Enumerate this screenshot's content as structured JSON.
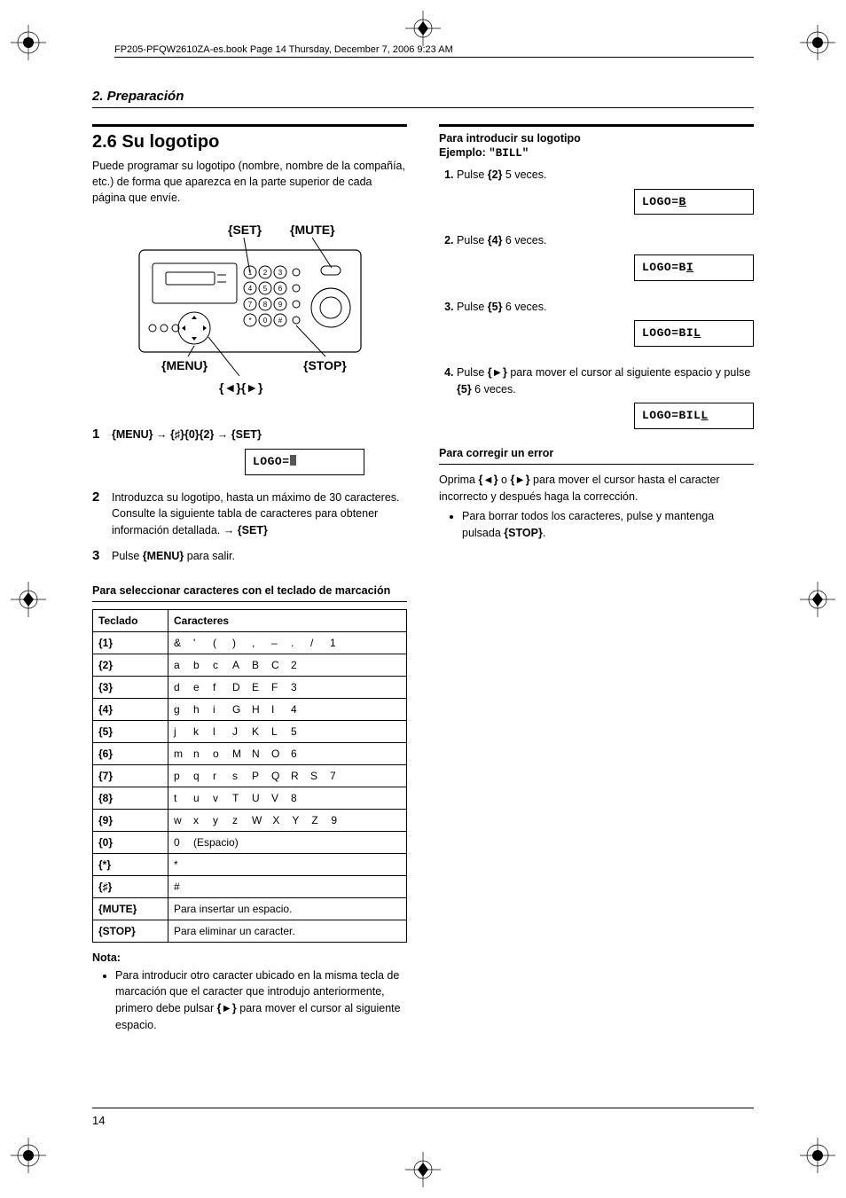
{
  "header": {
    "book_info": "FP205-PFQW2610ZA-es.book  Page 14  Thursday, December 7, 2006  9:23 AM"
  },
  "section_label": "2. Preparación",
  "title": "2.6 Su logotipo",
  "intro": "Puede programar su logotipo (nombre, nombre de la compañía, etc.) de forma que aparezca en la parte superior de cada página que envíe.",
  "device_labels": {
    "set": "{SET}",
    "mute": "{MUTE}",
    "menu": "{MENU}",
    "stop": "{STOP}",
    "arrows": "{◄}{►}"
  },
  "left_steps": [
    {
      "n": "1",
      "text_before": "",
      "sequence": "{MENU} → {♯}{0}{2} → {SET}",
      "lcd": "LOGO="
    },
    {
      "n": "2",
      "text": "Introduzca su logotipo, hasta un máximo de 30 caracteres. Consulte la siguiente tabla de caracteres para obtener información detallada. → {SET}"
    },
    {
      "n": "3",
      "text": "Pulse {MENU} para salir."
    }
  ],
  "char_table": {
    "heading": "Para seleccionar caracteres con el teclado de marcación",
    "col_keypad": "Teclado",
    "col_chars": "Caracteres",
    "rows": [
      {
        "key": "{1}",
        "chars": [
          "&",
          "'",
          "(",
          ")",
          ",",
          "–",
          ".",
          "/",
          "1"
        ]
      },
      {
        "key": "{2}",
        "chars": [
          "a",
          "b",
          "c",
          "A",
          "B",
          "C",
          "2"
        ]
      },
      {
        "key": "{3}",
        "chars": [
          "d",
          "e",
          "f",
          "D",
          "E",
          "F",
          "3"
        ]
      },
      {
        "key": "{4}",
        "chars": [
          "g",
          "h",
          "i",
          "G",
          "H",
          "I",
          "4"
        ]
      },
      {
        "key": "{5}",
        "chars": [
          "j",
          "k",
          "l",
          "J",
          "K",
          "L",
          "5"
        ]
      },
      {
        "key": "{6}",
        "chars": [
          "m",
          "n",
          "o",
          "M",
          "N",
          "O",
          "6"
        ]
      },
      {
        "key": "{7}",
        "chars": [
          "p",
          "q",
          "r",
          "s",
          "P",
          "Q",
          "R",
          "S",
          "7"
        ]
      },
      {
        "key": "{8}",
        "chars": [
          "t",
          "u",
          "v",
          "T",
          "U",
          "V",
          "8"
        ]
      },
      {
        "key": "{9}",
        "chars": [
          "w",
          "x",
          "y",
          "z",
          "W",
          "X",
          "Y",
          "Z",
          "9"
        ]
      },
      {
        "key": "{0}",
        "chars": [
          "0",
          "(Espacio)"
        ]
      },
      {
        "key": "{*}",
        "chars": [
          "*"
        ]
      },
      {
        "key": "{♯}",
        "chars": [
          "#"
        ]
      },
      {
        "key": "{MUTE}",
        "text": "Para insertar un espacio."
      },
      {
        "key": "{STOP}",
        "text": "Para eliminar un caracter."
      }
    ]
  },
  "note": {
    "label": "Nota:",
    "bullet": "Para introducir otro caracter ubicado en la misma tecla de marcación que el caracter que introdujo anteriormente, primero debe pulsar {►} para mover el cursor al siguiente espacio."
  },
  "right": {
    "heading": "Para introducir su logotipo",
    "example_label": "Ejemplo:",
    "example_value": "\"BILL\"",
    "steps": [
      {
        "n": "1.",
        "text": "Pulse {2} 5 veces.",
        "lcd_prefix": "LOGO=",
        "lcd_char": "B"
      },
      {
        "n": "2.",
        "text": "Pulse {4} 6 veces.",
        "lcd_prefix": "LOGO=B",
        "lcd_char": "I"
      },
      {
        "n": "3.",
        "text": "Pulse {5} 6 veces.",
        "lcd_prefix": "LOGO=BI",
        "lcd_char": "L"
      },
      {
        "n": "4.",
        "text": "Pulse {►} para mover el cursor al siguiente espacio y pulse {5} 6 veces.",
        "lcd_prefix": "LOGO=BIL",
        "lcd_char": "L"
      }
    ],
    "correction_heading": "Para corregir un error",
    "correction_text": "Oprima {◄} o {►} para mover el cursor hasta el caracter incorrecto y después haga la corrección.",
    "correction_bullet": "Para borrar todos los caracteres, pulse y mantenga pulsada {STOP}."
  },
  "page_number": "14"
}
